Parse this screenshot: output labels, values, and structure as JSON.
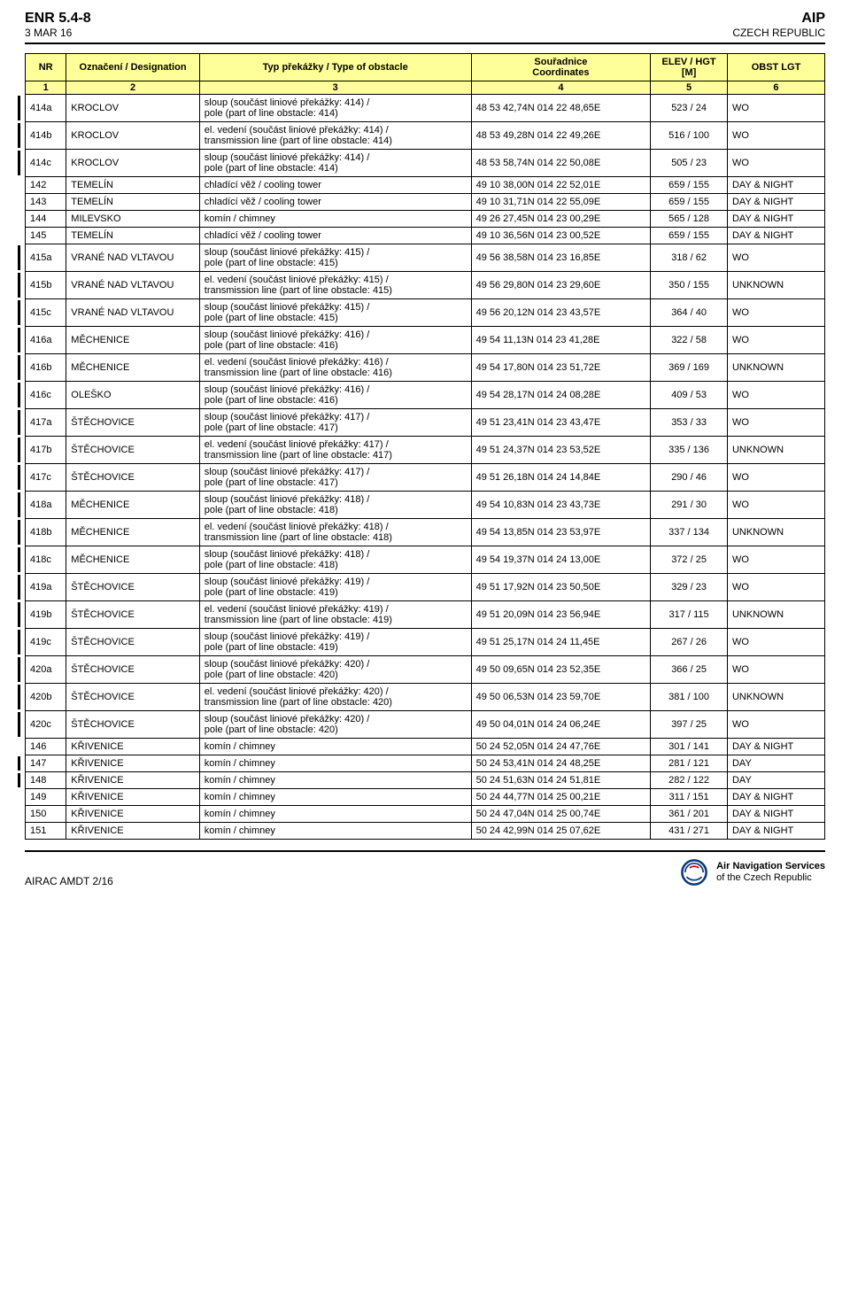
{
  "header": {
    "left_title": "ENR 5.4-8",
    "left_date": "3 MAR 16",
    "right_title": "AIP",
    "right_sub": "CZECH REPUBLIC"
  },
  "columns": {
    "nr": "NR",
    "desig": "Označení / Designation",
    "type": "Typ překážky / Type of obstacle",
    "coord": "Souřadnice\nCoordinates",
    "elev": "ELEV / HGT\n[M]",
    "lgt": "OBST LGT",
    "n1": "1",
    "n2": "2",
    "n3": "3",
    "n4": "4",
    "n5": "5",
    "n6": "6"
  },
  "rows": [
    {
      "nr": "414a",
      "desig": "KROCLOV",
      "type": "sloup (součást liniové překážky: 414) /\npole (part of line obstacle: 414)",
      "coord": "48 53 42,74N 014 22 48,65E",
      "elev": "523 / 24",
      "lgt": "WO",
      "cb": true
    },
    {
      "nr": "414b",
      "desig": "KROCLOV",
      "type": "el. vedení (součást liniové překážky: 414) /\ntransmission line (part of line obstacle: 414)",
      "coord": "48 53 49,28N 014 22 49,26E",
      "elev": "516 / 100",
      "lgt": "WO",
      "cb": true
    },
    {
      "nr": "414c",
      "desig": "KROCLOV",
      "type": "sloup (součást liniové překážky: 414) /\npole (part of line obstacle: 414)",
      "coord": "48 53 58,74N 014 22 50,08E",
      "elev": "505 / 23",
      "lgt": "WO",
      "cb": true
    },
    {
      "nr": "142",
      "desig": "TEMELÍN",
      "type": "chladící věž / cooling tower",
      "coord": "49 10 38,00N 014 22 52,01E",
      "elev": "659 / 155",
      "lgt": "DAY & NIGHT",
      "cb": false
    },
    {
      "nr": "143",
      "desig": "TEMELÍN",
      "type": "chladící věž / cooling tower",
      "coord": "49 10 31,71N 014 22 55,09E",
      "elev": "659 / 155",
      "lgt": "DAY & NIGHT",
      "cb": false
    },
    {
      "nr": "144",
      "desig": "MILEVSKO",
      "type": "komín / chimney",
      "coord": "49 26 27,45N 014 23 00,29E",
      "elev": "565 / 128",
      "lgt": "DAY & NIGHT",
      "cb": false
    },
    {
      "nr": "145",
      "desig": "TEMELÍN",
      "type": "chladící věž / cooling tower",
      "coord": "49 10 36,56N 014 23 00,52E",
      "elev": "659 / 155",
      "lgt": "DAY & NIGHT",
      "cb": false
    },
    {
      "nr": "415a",
      "desig": "VRANÉ NAD VLTAVOU",
      "type": "sloup (součást liniové překážky: 415) /\npole (part of line obstacle: 415)",
      "coord": "49 56 38,58N 014 23 16,85E",
      "elev": "318 / 62",
      "lgt": "WO",
      "cb": true
    },
    {
      "nr": "415b",
      "desig": "VRANÉ NAD VLTAVOU",
      "type": "el. vedení (součást liniové překážky: 415) /\ntransmission line (part of line obstacle: 415)",
      "coord": "49 56 29,80N 014 23 29,60E",
      "elev": "350 / 155",
      "lgt": "UNKNOWN",
      "cb": true
    },
    {
      "nr": "415c",
      "desig": "VRANÉ NAD VLTAVOU",
      "type": "sloup (součást liniové překážky: 415) /\npole (part of line obstacle: 415)",
      "coord": "49 56 20,12N 014 23 43,57E",
      "elev": "364 / 40",
      "lgt": "WO",
      "cb": true
    },
    {
      "nr": "416a",
      "desig": "MĚCHENICE",
      "type": "sloup (součást liniové překážky: 416) /\npole (part of line obstacle: 416)",
      "coord": "49 54 11,13N 014 23 41,28E",
      "elev": "322 / 58",
      "lgt": "WO",
      "cb": true
    },
    {
      "nr": "416b",
      "desig": "MĚCHENICE",
      "type": "el. vedení (součást liniové překážky: 416) /\ntransmission line (part of line obstacle: 416)",
      "coord": "49 54 17,80N 014 23 51,72E",
      "elev": "369 / 169",
      "lgt": "UNKNOWN",
      "cb": true
    },
    {
      "nr": "416c",
      "desig": "OLEŠKO",
      "type": "sloup (součást liniové překážky: 416) /\npole (part of line obstacle: 416)",
      "coord": "49 54 28,17N 014 24 08,28E",
      "elev": "409 / 53",
      "lgt": "WO",
      "cb": true
    },
    {
      "nr": "417a",
      "desig": "ŠTĚCHOVICE",
      "type": "sloup (součást liniové překážky: 417) /\npole (part of line obstacle: 417)",
      "coord": "49 51 23,41N 014 23 43,47E",
      "elev": "353 / 33",
      "lgt": "WO",
      "cb": true
    },
    {
      "nr": "417b",
      "desig": "ŠTĚCHOVICE",
      "type": "el. vedení (součást liniové překážky: 417) /\ntransmission line (part of line obstacle: 417)",
      "coord": "49 51 24,37N 014 23 53,52E",
      "elev": "335 / 136",
      "lgt": "UNKNOWN",
      "cb": true
    },
    {
      "nr": "417c",
      "desig": "ŠTĚCHOVICE",
      "type": "sloup (součást liniové překážky: 417) /\npole (part of line obstacle: 417)",
      "coord": "49 51 26,18N 014 24 14,84E",
      "elev": "290 / 46",
      "lgt": "WO",
      "cb": true
    },
    {
      "nr": "418a",
      "desig": "MĚCHENICE",
      "type": "sloup (součást liniové překážky: 418) /\npole (part of line obstacle: 418)",
      "coord": "49 54 10,83N 014 23 43,73E",
      "elev": "291 / 30",
      "lgt": "WO",
      "cb": true
    },
    {
      "nr": "418b",
      "desig": "MĚCHENICE",
      "type": "el. vedení (součást liniové překážky: 418) /\ntransmission line (part of line obstacle: 418)",
      "coord": "49 54 13,85N 014 23 53,97E",
      "elev": "337 / 134",
      "lgt": "UNKNOWN",
      "cb": true
    },
    {
      "nr": "418c",
      "desig": "MĚCHENICE",
      "type": "sloup (součást liniové překážky: 418) /\npole (part of line obstacle: 418)",
      "coord": "49 54 19,37N 014 24 13,00E",
      "elev": "372 / 25",
      "lgt": "WO",
      "cb": true
    },
    {
      "nr": "419a",
      "desig": "ŠTĚCHOVICE",
      "type": "sloup (součást liniové překážky: 419) /\npole (part of line obstacle: 419)",
      "coord": "49 51 17,92N 014 23 50,50E",
      "elev": "329 / 23",
      "lgt": "WO",
      "cb": true
    },
    {
      "nr": "419b",
      "desig": "ŠTĚCHOVICE",
      "type": "el. vedení (součást liniové překážky: 419) /\ntransmission line (part of line obstacle: 419)",
      "coord": "49 51 20,09N 014 23 56,94E",
      "elev": "317 / 115",
      "lgt": "UNKNOWN",
      "cb": true
    },
    {
      "nr": "419c",
      "desig": "ŠTĚCHOVICE",
      "type": "sloup (součást liniové překážky: 419) /\npole (part of line obstacle: 419)",
      "coord": "49 51 25,17N 014 24 11,45E",
      "elev": "267 / 26",
      "lgt": "WO",
      "cb": true
    },
    {
      "nr": "420a",
      "desig": "ŠTĚCHOVICE",
      "type": "sloup (součást liniové překážky: 420) /\npole (part of line obstacle: 420)",
      "coord": "49 50 09,65N 014 23 52,35E",
      "elev": "366 / 25",
      "lgt": "WO",
      "cb": true
    },
    {
      "nr": "420b",
      "desig": "ŠTĚCHOVICE",
      "type": "el. vedení (součást liniové překážky: 420) /\ntransmission line (part of line obstacle: 420)",
      "coord": "49 50 06,53N 014 23 59,70E",
      "elev": "381 / 100",
      "lgt": "UNKNOWN",
      "cb": true
    },
    {
      "nr": "420c",
      "desig": "ŠTĚCHOVICE",
      "type": "sloup (součást liniové překážky: 420) /\npole (part of line obstacle: 420)",
      "coord": "49 50 04,01N 014 24 06,24E",
      "elev": "397 / 25",
      "lgt": "WO",
      "cb": true
    },
    {
      "nr": "146",
      "desig": "KŘIVENICE",
      "type": "komín / chimney",
      "coord": "50 24 52,05N 014 24 47,76E",
      "elev": "301 / 141",
      "lgt": "DAY & NIGHT",
      "cb": false
    },
    {
      "nr": "147",
      "desig": "KŘIVENICE",
      "type": "komín / chimney",
      "coord": "50 24 53,41N 014 24 48,25E",
      "elev": "281 / 121",
      "lgt": "DAY",
      "cb": true
    },
    {
      "nr": "148",
      "desig": "KŘIVENICE",
      "type": "komín / chimney",
      "coord": "50 24 51,63N 014 24 51,81E",
      "elev": "282 / 122",
      "lgt": "DAY",
      "cb": true
    },
    {
      "nr": "149",
      "desig": "KŘIVENICE",
      "type": "komín / chimney",
      "coord": "50 24 44,77N 014 25 00,21E",
      "elev": "311 / 151",
      "lgt": "DAY & NIGHT",
      "cb": false
    },
    {
      "nr": "150",
      "desig": "KŘIVENICE",
      "type": "komín / chimney",
      "coord": "50 24 47,04N 014 25 00,74E",
      "elev": "361 / 201",
      "lgt": "DAY & NIGHT",
      "cb": false
    },
    {
      "nr": "151",
      "desig": "KŘIVENICE",
      "type": "komín / chimney",
      "coord": "50 24 42,99N 014 25 07,62E",
      "elev": "431 / 271",
      "lgt": "DAY & NIGHT",
      "cb": false
    }
  ],
  "footer": {
    "amdt": "AIRAC AMDT 2/16",
    "logo_l1": "Air Navigation Services",
    "logo_l2": "of the Czech Republic"
  },
  "colors": {
    "header_bg": "#ffff99",
    "logo": "#0a3a7a"
  }
}
